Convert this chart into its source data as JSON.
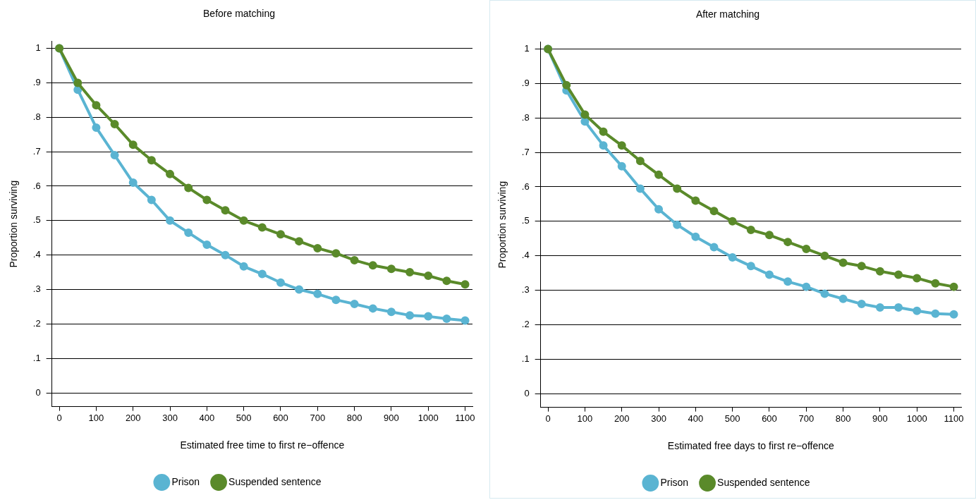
{
  "chart_data": [
    {
      "type": "line",
      "title": "Before matching",
      "xlabel": "Estimated free time to first re−offence",
      "ylabel": "Proportion surviving",
      "x": [
        0,
        50,
        100,
        150,
        200,
        250,
        300,
        350,
        400,
        450,
        500,
        550,
        600,
        650,
        700,
        750,
        800,
        850,
        900,
        950,
        1000,
        1050,
        1100
      ],
      "series": [
        {
          "name": "Prison",
          "color": "#5ab4d2",
          "values": [
            1.0,
            0.88,
            0.77,
            0.69,
            0.61,
            0.56,
            0.5,
            0.465,
            0.43,
            0.4,
            0.367,
            0.345,
            0.32,
            0.3,
            0.287,
            0.27,
            0.258,
            0.245,
            0.235,
            0.225,
            0.222,
            0.215,
            0.21
          ]
        },
        {
          "name": "Suspended sentence",
          "color": "#5a8a2a",
          "values": [
            1.0,
            0.9,
            0.835,
            0.78,
            0.72,
            0.675,
            0.635,
            0.595,
            0.56,
            0.53,
            0.5,
            0.48,
            0.46,
            0.44,
            0.42,
            0.405,
            0.385,
            0.37,
            0.36,
            0.35,
            0.34,
            0.325,
            0.315
          ]
        }
      ],
      "xlim": [
        -20,
        1120
      ],
      "xticks": [
        0,
        100,
        200,
        300,
        400,
        500,
        600,
        700,
        800,
        900,
        1000,
        1100
      ],
      "ylim": [
        -0.04,
        1.02
      ],
      "yticks": [
        {
          "value": 0,
          "label": "0"
        },
        {
          "value": 0.1,
          "label": ".1"
        },
        {
          "value": 0.2,
          "label": ".2"
        },
        {
          "value": 0.3,
          "label": ".3"
        },
        {
          "value": 0.4,
          "label": ".4"
        },
        {
          "value": 0.5,
          "label": ".5"
        },
        {
          "value": 0.6,
          "label": ".6"
        },
        {
          "value": 0.7,
          "label": ".7"
        },
        {
          "value": 0.8,
          "label": ".8"
        },
        {
          "value": 0.9,
          "label": ".9"
        },
        {
          "value": 1,
          "label": "1"
        }
      ],
      "grid": "y",
      "legend": "bottom",
      "marker": "circle"
    },
    {
      "type": "line",
      "title": "After matching",
      "xlabel": "Estimated free days to first re−offence",
      "ylabel": "Proportion surviving",
      "x": [
        0,
        50,
        100,
        150,
        200,
        250,
        300,
        350,
        400,
        450,
        500,
        550,
        600,
        650,
        700,
        750,
        800,
        850,
        900,
        950,
        1000,
        1050,
        1100
      ],
      "series": [
        {
          "name": "Prison",
          "color": "#5ab4d2",
          "values": [
            1.0,
            0.88,
            0.79,
            0.72,
            0.66,
            0.595,
            0.535,
            0.49,
            0.455,
            0.425,
            0.395,
            0.37,
            0.345,
            0.325,
            0.31,
            0.29,
            0.275,
            0.26,
            0.25,
            0.25,
            0.24,
            0.232,
            0.23
          ]
        },
        {
          "name": "Suspended sentence",
          "color": "#5a8a2a",
          "values": [
            1.0,
            0.895,
            0.81,
            0.76,
            0.72,
            0.675,
            0.635,
            0.595,
            0.56,
            0.53,
            0.5,
            0.475,
            0.46,
            0.44,
            0.42,
            0.4,
            0.38,
            0.37,
            0.355,
            0.345,
            0.335,
            0.32,
            0.31
          ]
        }
      ],
      "xlim": [
        -20,
        1120
      ],
      "xticks": [
        0,
        100,
        200,
        300,
        400,
        500,
        600,
        700,
        800,
        900,
        1000,
        1100
      ],
      "ylim": [
        -0.04,
        1.02
      ],
      "yticks": [
        {
          "value": 0,
          "label": "0"
        },
        {
          "value": 0.1,
          "label": ".1"
        },
        {
          "value": 0.2,
          "label": ".2"
        },
        {
          "value": 0.3,
          "label": ".3"
        },
        {
          "value": 0.4,
          "label": ".4"
        },
        {
          "value": 0.5,
          "label": ".5"
        },
        {
          "value": 0.6,
          "label": ".6"
        },
        {
          "value": 0.7,
          "label": ".7"
        },
        {
          "value": 0.8,
          "label": ".8"
        },
        {
          "value": 0.9,
          "label": ".9"
        },
        {
          "value": 1,
          "label": "1"
        }
      ],
      "grid": "y",
      "legend": "bottom",
      "marker": "circle"
    }
  ]
}
